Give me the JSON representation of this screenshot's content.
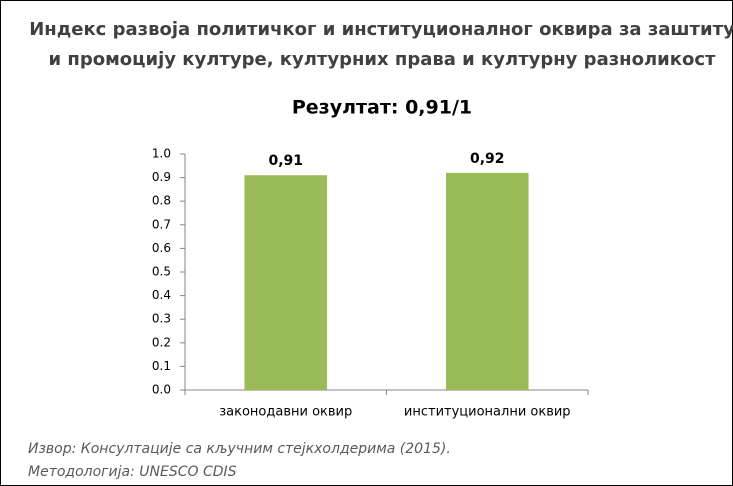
{
  "chart_data": {
    "type": "bar",
    "title": [
      "Индекс развоја политичког и институционалног оквира за заштиту",
      "и промоцију културе, културних права и културну разноликост"
    ],
    "subtitle": "Резултат: 0,91/1",
    "categories": [
      "законодавни оквир",
      "институционални оквир"
    ],
    "values": [
      0.91,
      0.92
    ],
    "value_labels": [
      "0,91",
      "0,92"
    ],
    "color": "#9bbb59",
    "ylim": [
      0,
      1
    ],
    "yticks": [
      {
        "value": 0,
        "label": "0.0"
      },
      0.1,
      0.2,
      0.3,
      0.4,
      0.5,
      0.6,
      0.7,
      0.8,
      0.9,
      {
        "value": 1,
        "label": "1.0"
      }
    ],
    "grid": false,
    "source": [
      "Извор: Консултације са кључним стејкхолдерима (2015).",
      "Методологија: UNESCO CDIS"
    ]
  }
}
